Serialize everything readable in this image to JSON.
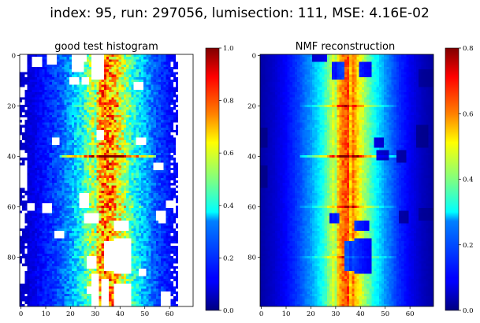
{
  "figure": {
    "suptitle": "index: 95, run: 297056, lumisection: 111, MSE: 4.16E-02"
  },
  "chart_data": [
    {
      "type": "heatmap",
      "title": "good test histogram",
      "xlabel": "",
      "ylabel": "",
      "n_cols": 70,
      "n_rows": 100,
      "xlim": [
        -0.5,
        69.5
      ],
      "ylim": [
        99.5,
        -0.5
      ],
      "x_ticks": [
        0,
        10,
        20,
        30,
        40,
        50,
        60
      ],
      "y_ticks": [
        0,
        20,
        40,
        60,
        80
      ],
      "x_tick_labels": [
        "0",
        "10",
        "20",
        "30",
        "40",
        "50",
        "60"
      ],
      "y_tick_labels": [
        "0",
        "20",
        "40",
        "60",
        "80"
      ],
      "colormap": "jet",
      "vmin": 0.0,
      "vmax": 1.0,
      "colorbar_ticks": [
        0.0,
        0.2,
        0.4,
        0.6,
        0.8,
        1.0
      ],
      "colorbar_tick_labels": [
        "0.0",
        "0.2",
        "0.4",
        "0.6",
        "0.8",
        "1.0"
      ],
      "profile_note": "intensity peaks near x = 33-38 (~0.75), falls to ~0.1 at edges; bright horizontal streak at y = 40 (~1.0); zero-valued (white) rectangular patches",
      "profile_columns": [
        0,
        5,
        10,
        15,
        20,
        25,
        30,
        33,
        35,
        37,
        40,
        45,
        50,
        55,
        60,
        65,
        69
      ],
      "profile_values": [
        0.07,
        0.1,
        0.15,
        0.2,
        0.28,
        0.4,
        0.6,
        0.74,
        0.75,
        0.73,
        0.6,
        0.42,
        0.3,
        0.2,
        0.14,
        0.1,
        0.07
      ],
      "empty_blocks": [
        {
          "x": [
            0,
            2
          ],
          "y": [
            0,
            6
          ]
        },
        {
          "x": [
            11,
            14
          ],
          "y": [
            0,
            3
          ]
        },
        {
          "x": [
            21,
            26
          ],
          "y": [
            0,
            2
          ]
        },
        {
          "x": [
            29,
            33
          ],
          "y": [
            0,
            9
          ]
        },
        {
          "x": [
            5,
            8
          ],
          "y": [
            1,
            4
          ]
        },
        {
          "x": [
            20,
            23
          ],
          "y": [
            9,
            11
          ]
        },
        {
          "x": [
            25,
            27
          ],
          "y": [
            9,
            11
          ]
        },
        {
          "x": [
            21,
            25
          ],
          "y": [
            2,
            6
          ]
        },
        {
          "x": [
            0,
            1
          ],
          "y": [
            14,
            16
          ]
        },
        {
          "x": [
            0,
            1
          ],
          "y": [
            38,
            40
          ]
        },
        {
          "x": [
            13,
            15
          ],
          "y": [
            33,
            35
          ]
        },
        {
          "x": [
            31,
            33
          ],
          "y": [
            30,
            33
          ]
        },
        {
          "x": [
            47,
            50
          ],
          "y": [
            33,
            35
          ]
        },
        {
          "x": [
            46,
            49
          ],
          "y": [
            11,
            13
          ]
        },
        {
          "x": [
            54,
            57
          ],
          "y": [
            43,
            45
          ]
        },
        {
          "x": [
            63,
            64
          ],
          "y": [
            0,
            2
          ]
        },
        {
          "x": [
            64,
            69
          ],
          "y": [
            0,
            99
          ]
        },
        {
          "x": [
            0,
            2
          ],
          "y": [
            44,
            52
          ]
        },
        {
          "x": [
            0,
            1
          ],
          "y": [
            63,
            68
          ]
        },
        {
          "x": [
            3,
            5
          ],
          "y": [
            59,
            61
          ]
        },
        {
          "x": [
            9,
            12
          ],
          "y": [
            59,
            62
          ]
        },
        {
          "x": [
            14,
            17
          ],
          "y": [
            70,
            72
          ]
        },
        {
          "x": [
            24,
            27
          ],
          "y": [
            55,
            60
          ]
        },
        {
          "x": [
            26,
            31
          ],
          "y": [
            63,
            66
          ]
        },
        {
          "x": [
            38,
            43
          ],
          "y": [
            66,
            69
          ]
        },
        {
          "x": [
            56,
            58
          ],
          "y": [
            62,
            66
          ]
        },
        {
          "x": [
            59,
            62
          ],
          "y": [
            58,
            60
          ]
        },
        {
          "x": [
            63,
            64
          ],
          "y": [
            32,
            42
          ]
        },
        {
          "x": [
            34,
            38
          ],
          "y": [
            74,
            85
          ]
        },
        {
          "x": [
            38,
            44
          ],
          "y": [
            73,
            86
          ]
        },
        {
          "x": [
            27,
            30
          ],
          "y": [
            80,
            84
          ]
        },
        {
          "x": [
            29,
            31
          ],
          "y": [
            87,
            99
          ]
        },
        {
          "x": [
            33,
            35
          ],
          "y": [
            89,
            99
          ]
        },
        {
          "x": [
            38,
            44
          ],
          "y": [
            91,
            99
          ]
        },
        {
          "x": [
            27,
            30
          ],
          "y": [
            92,
            94
          ]
        },
        {
          "x": [
            48,
            50
          ],
          "y": [
            85,
            87
          ]
        },
        {
          "x": [
            55,
            58
          ],
          "y": [
            62,
            65
          ]
        },
        {
          "x": [
            57,
            60
          ],
          "y": [
            94,
            99
          ]
        },
        {
          "x": [
            0,
            1
          ],
          "y": [
            85,
            90
          ]
        }
      ]
    },
    {
      "type": "heatmap",
      "title": "NMF reconstruction",
      "xlabel": "",
      "ylabel": "",
      "n_cols": 70,
      "n_rows": 100,
      "xlim": [
        -0.5,
        69.5
      ],
      "ylim": [
        99.5,
        -0.5
      ],
      "x_ticks": [
        0,
        10,
        20,
        30,
        40,
        50,
        60
      ],
      "y_ticks": [
        0,
        20,
        40,
        60,
        80
      ],
      "x_tick_labels": [
        "0",
        "10",
        "20",
        "30",
        "40",
        "50",
        "60"
      ],
      "y_tick_labels": [
        "0",
        "20",
        "40",
        "60",
        "80"
      ],
      "colormap": "jet",
      "vmin": 0.0,
      "vmax": 0.8,
      "colorbar_ticks": [
        0.0,
        0.2,
        0.4,
        0.6,
        0.8
      ],
      "colorbar_tick_labels": [
        "0.0",
        "0.2",
        "0.4",
        "0.6",
        "0.8"
      ],
      "profile_note": "smooth reconstruction: peak ~0.65 at x = 33-38, falls to ~0.05 at edges; streaks at y = 20, 40, 60, 80; dark (low) blocks where input was empty",
      "profile_columns": [
        0,
        5,
        10,
        15,
        20,
        25,
        30,
        33,
        35,
        37,
        40,
        45,
        50,
        55,
        60,
        65,
        69
      ],
      "profile_values": [
        0.03,
        0.06,
        0.1,
        0.15,
        0.22,
        0.32,
        0.5,
        0.62,
        0.65,
        0.61,
        0.48,
        0.33,
        0.22,
        0.14,
        0.09,
        0.05,
        0.03
      ],
      "dark_blocks": [
        {
          "x": [
            21,
            26
          ],
          "y": [
            0,
            2
          ]
        },
        {
          "x": [
            29,
            33
          ],
          "y": [
            3,
            9
          ]
        },
        {
          "x": [
            34,
            38
          ],
          "y": [
            74,
            85
          ]
        },
        {
          "x": [
            38,
            44
          ],
          "y": [
            73,
            86
          ]
        },
        {
          "x": [
            40,
            44
          ],
          "y": [
            3,
            8
          ]
        },
        {
          "x": [
            46,
            49
          ],
          "y": [
            33,
            36
          ]
        },
        {
          "x": [
            47,
            51
          ],
          "y": [
            38,
            41
          ]
        },
        {
          "x": [
            55,
            58
          ],
          "y": [
            38,
            42
          ]
        },
        {
          "x": [
            63,
            67
          ],
          "y": [
            28,
            36
          ]
        },
        {
          "x": [
            28,
            31
          ],
          "y": [
            63,
            66
          ]
        },
        {
          "x": [
            38,
            43
          ],
          "y": [
            66,
            69
          ]
        },
        {
          "x": [
            56,
            59
          ],
          "y": [
            62,
            66
          ]
        },
        {
          "x": [
            0,
            2
          ],
          "y": [
            29,
            36
          ]
        },
        {
          "x": [
            0,
            2
          ],
          "y": [
            44,
            52
          ]
        }
      ]
    }
  ]
}
